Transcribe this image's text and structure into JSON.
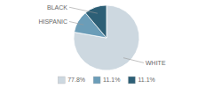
{
  "chart_data": {
    "type": "pie",
    "categories": [
      "WHITE",
      "HISPANIC",
      "BLACK"
    ],
    "values": [
      77.8,
      11.1,
      11.1
    ],
    "value_labels": [
      "77.8%",
      "11.1%",
      "11.1%"
    ],
    "colors": [
      "#cdd8e0",
      "#6b9db8",
      "#2d5f76"
    ],
    "legend": "bottom"
  }
}
